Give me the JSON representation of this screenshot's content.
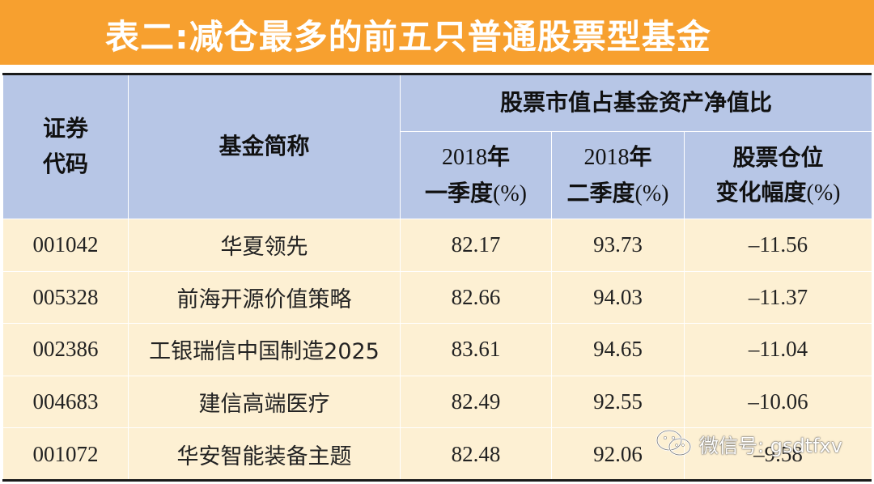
{
  "title": "表二:减仓最多的前五只普通股票型基金",
  "headers": {
    "code": [
      "证券",
      "代码"
    ],
    "name": "基金简称",
    "group": "股票市值占基金资产净值比",
    "q1": {
      "year": "2018",
      "label1": "年",
      "label2": "一季度",
      "unit": "(%)"
    },
    "q2": {
      "year": "2018",
      "label1": "年",
      "label2": "二季度",
      "unit": "(%)"
    },
    "change": {
      "line1": "股票仓位",
      "line2": "变化幅度",
      "unit": "(%)"
    }
  },
  "rows": [
    {
      "code": "001042",
      "name": "华夏领先",
      "q1": "82.17",
      "q2": "93.73",
      "change": "–11.56"
    },
    {
      "code": "005328",
      "name": "前海开源价值策略",
      "q1": "82.66",
      "q2": "94.03",
      "change": "–11.37"
    },
    {
      "code": "002386",
      "name": "工银瑞信中国制造2025",
      "q1": "83.61",
      "q2": "94.65",
      "change": "–11.04"
    },
    {
      "code": "004683",
      "name": "建信高端医疗",
      "q1": "82.49",
      "q2": "92.55",
      "change": "–10.06"
    },
    {
      "code": "001072",
      "name": "华安智能装备主题",
      "q1": "82.48",
      "q2": "92.06",
      "change": "–9.58"
    }
  ],
  "watermark": {
    "text": "微信号: gsdtfxv",
    "icon": "wechat-icon"
  },
  "colors": {
    "title_bg": "#f7a02f",
    "header_bg": "#b7c6e6",
    "body_bg": "#fdf0d3"
  }
}
